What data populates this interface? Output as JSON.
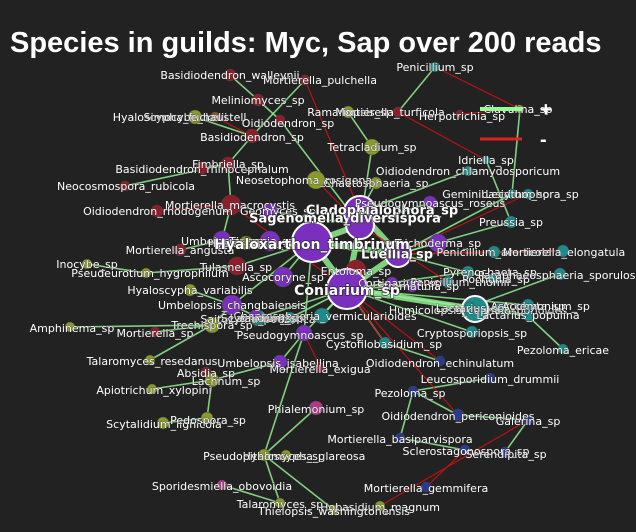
{
  "title": "Species in guilds: Myc, Sap over 200 reads",
  "legend": {
    "positive": {
      "label": "+",
      "color": "#99ff99"
    },
    "negative": {
      "label": "-",
      "color": "#dd2222"
    }
  },
  "colors": {
    "background": "#222222",
    "positive_edge": "#90ee90",
    "negative_edge": "#cc1111",
    "node_purple": "#7b2fbf",
    "node_teal": "#1f8a8a",
    "node_red": "#8e1f2a",
    "node_olive": "#8a9a2a",
    "node_navy": "#2a3a8e",
    "node_brown": "#8a5a2a",
    "node_pink": "#b03a8a"
  },
  "nodes": [
    {
      "id": "basidiodendron_walleynii",
      "label": "Basidiodendron_walleynii",
      "color": "node_red"
    },
    {
      "id": "mortierella_pulchella",
      "label": "Mortierella_pulchella",
      "color": "node_red"
    },
    {
      "id": "penicillium_sp",
      "label": "Penicillium_sp",
      "color": "node_teal"
    },
    {
      "id": "meliniomyces_sp",
      "label": "Meliniomyces_sp",
      "color": "node_red"
    },
    {
      "id": "hyaloscypha_fuckelii",
      "label": "Hyaloscypha_fuckelii",
      "color": "node_olive"
    },
    {
      "id": "simocybe_haustellaris",
      "label": "Simocybe_haustell",
      "color": "node_brown"
    },
    {
      "id": "oidiodendron_sp_top",
      "label": "Oidiodendron_sp",
      "color": "node_red"
    },
    {
      "id": "ramariopsis_sp",
      "label": "Ramariopsis_sp",
      "color": "node_olive"
    },
    {
      "id": "mortierella_turficola",
      "label": "Mortierella_turficola",
      "color": "node_red"
    },
    {
      "id": "herpotrichia_sp",
      "label": "Herpotrichia_sp",
      "color": "node_red"
    },
    {
      "id": "clavulina_sp",
      "label": "Clavulina_sp",
      "color": "node_olive"
    },
    {
      "id": "basidiodendron_sp",
      "label": "Basidiodendron_sp",
      "color": "node_red"
    },
    {
      "id": "tetracladium_sp",
      "label": "Tetracladium_sp",
      "color": "node_olive"
    },
    {
      "id": "basidiodendron_rhinocephalum",
      "label": "Basidiodendron_rhinocephalum",
      "color": "node_red"
    },
    {
      "id": "fimbriella_sp",
      "label": "Fimbriella_sp",
      "color": "node_red"
    },
    {
      "id": "idriella_sp",
      "label": "Idriella_sp",
      "color": "node_teal"
    },
    {
      "id": "oidiodendron_chlamydosporicum",
      "label": "Oidiodendron_chlamydosporicum",
      "color": "node_teal"
    },
    {
      "id": "neosetophoma_sp",
      "label": "Neosetophoma_rosigena",
      "color": "node_olive"
    },
    {
      "id": "chaetosphaeria_sp",
      "label": "Chaetosphaeria_sp",
      "color": "node_olive"
    },
    {
      "id": "neocosmospora_rubicola",
      "label": "Neocosmospora_rubicola",
      "color": "node_red"
    },
    {
      "id": "geminibasidium_sp",
      "label": "Geminibasidium_sp",
      "color": "node_teal"
    },
    {
      "id": "lecythophora_sp",
      "label": "Lecythophora_sp",
      "color": "node_teal"
    },
    {
      "id": "mortierella_macrocystis",
      "label": "Mortierella_macrocystis",
      "color": "node_red"
    },
    {
      "id": "geomyces_sp",
      "label": "Geomyces_sp",
      "color": "node_purple"
    },
    {
      "id": "cladophialophora_sp",
      "label": "Cladophialophora_sp",
      "color": "node_purple"
    },
    {
      "id": "pseudogymnoascus_roseus",
      "label": "Pseudogymnoascus_roseus",
      "color": "node_purple"
    },
    {
      "id": "oidiodendron_rhodogenum",
      "label": "Oidiodendron_rhodogenum",
      "color": "node_red"
    },
    {
      "id": "sagenomella_diversispora",
      "label": "Sagenomella_diversispora",
      "color": "node_purple"
    },
    {
      "id": "preussia_sp",
      "label": "Preussia_sp",
      "color": "node_teal"
    },
    {
      "id": "umbelopsis_sp",
      "label": "Umbelopsis_sp",
      "color": "node_purple"
    },
    {
      "id": "mortierella_angusta",
      "label": "Mortierella_angusta",
      "color": "node_red"
    },
    {
      "id": "tausonia_sp",
      "label": "Tausonia_sp",
      "color": "node_purple"
    },
    {
      "id": "hyaloscypha_sp",
      "label": "Hyaloscypha_sp",
      "color": "node_olive"
    },
    {
      "id": "trichoderma_sp",
      "label": "Trichoderma_sp",
      "color": "node_purple"
    },
    {
      "id": "taxomyces_sp",
      "label": "Penicillium_arenicola",
      "color": "node_teal"
    },
    {
      "id": "mortierella_elongatula",
      "label": "Mortierella_elongatula",
      "color": "node_teal"
    },
    {
      "id": "inocybe_sp",
      "label": "Inocybe_sp",
      "color": "node_olive"
    },
    {
      "id": "luellia_sp",
      "label": "Luellia_sp",
      "color": "node_purple"
    },
    {
      "id": "pseudeurotium_hygrophilum",
      "label": "Pseudeurotium_hygrophilum",
      "color": "node_olive"
    },
    {
      "id": "tulasnella_sp",
      "label": "Tulasnella_sp",
      "color": "node_red"
    },
    {
      "id": "entoloma_sp",
      "label": "Entoloma_sp",
      "color": "node_red"
    },
    {
      "id": "pezizomycetes_sp",
      "label": "Pyrenochaeta_sp",
      "color": "node_teal"
    },
    {
      "id": "penicillium_thomii",
      "label": "Penicillium_thomii",
      "color": "node_teal"
    },
    {
      "id": "ascocoryne_sp",
      "label": "Ascocoryne_sp",
      "color": "node_purple"
    },
    {
      "id": "pochonia_sp",
      "label": "Pochonia_sp",
      "color": "node_teal"
    },
    {
      "id": "hyaloscypha_variabilis",
      "label": "Hyaloscypha_variabilis",
      "color": "node_olive"
    },
    {
      "id": "cortinarium_sp",
      "label": "Cortinarium_sp",
      "color": "node_purple"
    },
    {
      "id": "stromatinia_sp",
      "label": "Stromatinia_sp",
      "color": "node_purple"
    },
    {
      "id": "humicolopsis_cephalosporioides",
      "label": "Humicolopsis_cephalosporioides",
      "color": "node_teal"
    },
    {
      "id": "paraphaeosphaeria_sporulosa",
      "label": "Paraphaeosphaeria_sporulosa",
      "color": "node_teal"
    },
    {
      "id": "umbelopsis_changbaiensis",
      "label": "Umbelopsis_changbaiensis",
      "color": "node_purple"
    },
    {
      "id": "saitozyma_podzolica",
      "label": "Saitozyma_podzolica",
      "color": "node_teal"
    },
    {
      "id": "chaetosphaeria_vermicularioides",
      "label": "Chaetosphaeria_vermicularioides",
      "color": "node_teal"
    },
    {
      "id": "ascochyta_sp",
      "label": "Ascochyta_sp",
      "color": "node_teal"
    },
    {
      "id": "acremonium_sp",
      "label": "Acremonium_sp",
      "color": "node_teal"
    },
    {
      "id": "lactarius_sp",
      "label": "Lactarius_sp",
      "color": "node_teal"
    },
    {
      "id": "lachnum_sp",
      "label": "Lachnum_sp",
      "color": "node_purple"
    },
    {
      "id": "lactarius_populina",
      "label": "Lactarius_populina",
      "color": "node_teal"
    },
    {
      "id": "amphinema_sp",
      "label": "Amphinema_sp",
      "color": "node_olive"
    },
    {
      "id": "mortierella_sp",
      "label": "Mortierella_sp",
      "color": "node_red"
    },
    {
      "id": "trechispora_sp",
      "label": "Trechispora_sp",
      "color": "node_olive"
    },
    {
      "id": "pseudogymnoascus_sp",
      "label": "Pseudogymnoascus_sp",
      "color": "node_purple"
    },
    {
      "id": "cryptosporiopsis_sp",
      "label": "Cryptosporiopsis_sp",
      "color": "node_teal"
    },
    {
      "id": "cystofilobasidium_sp",
      "label": "Cystofilobasidium_sp",
      "color": "node_teal"
    },
    {
      "id": "pezoloma_ericae",
      "label": "Pezoloma_ericae",
      "color": "node_teal"
    },
    {
      "id": "talaromyces_rosedanus",
      "label": "Talaromyces_resedanus",
      "color": "node_olive"
    },
    {
      "id": "umbelopsis_isabellina",
      "label": "Umbelopsis_isabellina",
      "color": "node_purple"
    },
    {
      "id": "oidiodendron_echinulatum",
      "label": "Oidiodendron_echinulatum",
      "color": "node_navy"
    },
    {
      "id": "absidia_sp",
      "label": "Absidia_sp",
      "color": "node_red"
    },
    {
      "id": "mortierella_exigua",
      "label": "Mortierella_exigua",
      "color": "node_red"
    },
    {
      "id": "lachnum_sp2",
      "label": "Lachnum_sp",
      "color": "node_olive"
    },
    {
      "id": "leucosporidium_drummii",
      "label": "Leucosporidium_drummii",
      "color": "node_navy"
    },
    {
      "id": "apiotrichum_xylopini",
      "label": "Apiotrichum_xylopini",
      "color": "node_olive"
    },
    {
      "id": "pezoloma_sp",
      "label": "Pezoloma_sp",
      "color": "node_navy"
    },
    {
      "id": "phialemonium_sp",
      "label": "Phialemonium_sp",
      "color": "node_pink"
    },
    {
      "id": "oidiodendron_periconioides",
      "label": "Oidiodendron_periconioides",
      "color": "node_navy"
    },
    {
      "id": "scytalidium_lignicola",
      "label": "Scytalidium_lignicola",
      "color": "node_olive"
    },
    {
      "id": "pedospora_sp",
      "label": "Pedospora_sp",
      "color": "node_olive"
    },
    {
      "id": "galerina_sp",
      "label": "Galerina_sp",
      "color": "node_navy"
    },
    {
      "id": "mortierella_basiparvispora",
      "label": "Mortierella_basiparvispora",
      "color": "node_navy"
    },
    {
      "id": "sclerostagonospora_sp",
      "label": "Sclerostagonospora_sp",
      "color": "node_navy"
    },
    {
      "id": "hyaloscypha_glareosa",
      "label": "Hyaloscypha_glareosa",
      "color": "node_olive"
    },
    {
      "id": "pseudopithomyces_sp",
      "label": "Pseudopithomyces_sp",
      "color": "node_olive"
    },
    {
      "id": "serendipita_sp",
      "label": "Serendipita_sp",
      "color": "node_navy"
    },
    {
      "id": "sporidesmiella_obovoidia",
      "label": "Sporidesmiella_obovoidia",
      "color": "node_pink"
    },
    {
      "id": "mortierella_gemmifera",
      "label": "Mortierella_gemmifera",
      "color": "node_navy"
    },
    {
      "id": "talaromyces_sp",
      "label": "Talaromyces_sp",
      "color": "node_olive"
    },
    {
      "id": "hobasidium_magnum",
      "label": "Hobasidium_magnum",
      "color": "node_olive"
    },
    {
      "id": "thielopsis_washingtonensis",
      "label": "Thielopsis_washingtonensis",
      "color": "node_olive"
    },
    {
      "id": "coniarium_sp",
      "label": "Coniarium_sp",
      "color": "node_purple"
    },
    {
      "id": "hyaloscypha_sp_big",
      "label": "Hyaloxarthon_timbrinum",
      "color": "node_purple"
    },
    {
      "id": "scytalidium_sp",
      "label": "Scytalidium_sp",
      "color": "node_teal"
    }
  ],
  "edges": [
    [
      "basidiodendron_walleynii",
      "meliniomyces_sp",
      "pos"
    ],
    [
      "mortierella_pulchella",
      "basidiodendron_sp",
      "pos"
    ],
    [
      "meliniomyces_sp",
      "oidiodendron_sp_top",
      "pos"
    ],
    [
      "hyaloscypha_fuckelii",
      "basidiodendron_sp",
      "pos"
    ],
    [
      "basidiodendron_sp",
      "fimbriella_sp",
      "pos"
    ],
    [
      "fimbriella_sp",
      "mortierella_macrocystis",
      "pos"
    ],
    [
      "mortierella_macrocystis",
      "umbelopsis_sp",
      "pos"
    ],
    [
      "umbelopsis_sp",
      "hyaloscypha_sp_big",
      "pos"
    ],
    [
      "hyaloscypha_sp_big",
      "sagenomella_diversispora",
      "pos"
    ],
    [
      "sagenomella_diversispora",
      "cladophialophora_sp",
      "pos"
    ],
    [
      "cladophialophora_sp",
      "luellia_sp",
      "pos"
    ],
    [
      "luellia_sp",
      "coniarium_sp",
      "pos"
    ],
    [
      "coniarium_sp",
      "hyaloscypha_sp_big",
      "pos"
    ],
    [
      "coniarium_sp",
      "sagenomella_diversispora",
      "pos"
    ],
    [
      "hyaloscypha_sp_big",
      "luellia_sp",
      "pos"
    ],
    [
      "tetracladium_sp",
      "sagenomella_diversispora",
      "pos"
    ],
    [
      "ramariopsis_sp",
      "tetracladium_sp",
      "pos"
    ],
    [
      "penicillium_sp",
      "clavulina_sp",
      "neg"
    ],
    [
      "penicillium_sp",
      "mortierella_turficola",
      "pos"
    ],
    [
      "mortierella_turficola",
      "idriella_sp",
      "neg"
    ],
    [
      "clavulina_sp",
      "geminibasidium_sp",
      "pos"
    ],
    [
      "idriella_sp",
      "preussia_sp",
      "pos"
    ],
    [
      "preussia_sp",
      "luellia_sp",
      "pos"
    ],
    [
      "mortierella_elongatula",
      "luellia_sp",
      "pos"
    ],
    [
      "paraphaeosphaeria_sporulosa",
      "lactarius_sp",
      "pos"
    ],
    [
      "lactarius_sp",
      "coniarium_sp",
      "pos"
    ],
    [
      "lactarius_populina",
      "coniarium_sp",
      "pos"
    ],
    [
      "pezoloma_ericae",
      "lactarius_populina",
      "pos"
    ],
    [
      "cryptosporiopsis_sp",
      "coniarium_sp",
      "pos"
    ],
    [
      "cystofilobasidium_sp",
      "coniarium_sp",
      "pos"
    ],
    [
      "oidiodendron_echinulatum",
      "cystofilobasidium_sp",
      "pos"
    ],
    [
      "leucosporidium_drummii",
      "pezoloma_sp",
      "pos"
    ],
    [
      "pezoloma_sp",
      "oidiodendron_periconioides",
      "pos"
    ],
    [
      "oidiodendron_periconioides",
      "galerina_sp",
      "pos"
    ],
    [
      "galerina_sp",
      "serendipita_sp",
      "pos"
    ],
    [
      "sclerostagonospora_sp",
      "mortierella_gemmifera",
      "neg"
    ],
    [
      "mortierella_basiparvispora",
      "sclerostagonospora_sp",
      "pos"
    ],
    [
      "phialemonium_sp",
      "pseudopithomyces_sp",
      "pos"
    ],
    [
      "pseudopithomyces_sp",
      "hyaloscypha_glareosa",
      "pos"
    ],
    [
      "pseudopithomyces_sp",
      "pseudogymnoascus_sp",
      "pos"
    ],
    [
      "pseudogymnoascus_sp",
      "coniarium_sp",
      "pos"
    ],
    [
      "umbelopsis_isabellina",
      "pseudogymnoascus_sp",
      "pos"
    ],
    [
      "absidia_sp",
      "lachnum_sp2",
      "pos"
    ],
    [
      "lachnum_sp2",
      "umbelopsis_isabellina",
      "pos"
    ],
    [
      "apiotrichum_xylopini",
      "lachnum_sp2",
      "pos"
    ],
    [
      "pedospora_sp",
      "lachnum_sp2",
      "pos"
    ],
    [
      "scytalidium_lignicola",
      "pedospora_sp",
      "pos"
    ],
    [
      "talaromyces_rosedanus",
      "trechispora_sp",
      "pos"
    ],
    [
      "mortierella_sp",
      "trechispora_sp",
      "pos"
    ],
    [
      "amphinema_sp",
      "trechispora_sp",
      "pos"
    ],
    [
      "trechispora_sp",
      "umbelopsis_changbaiensis",
      "pos"
    ],
    [
      "umbelopsis_changbaiensis",
      "hyaloscypha_sp_big",
      "pos"
    ],
    [
      "hyaloscypha_variabilis",
      "umbelopsis_changbaiensis",
      "pos"
    ],
    [
      "pseudeurotium_hygrophilum",
      "tulasnella_sp",
      "pos"
    ],
    [
      "inocybe_sp",
      "pseudeurotium_hygrophilum",
      "pos"
    ],
    [
      "tulasnella_sp",
      "hyaloscypha_sp_big",
      "pos"
    ],
    [
      "mortierella_angusta",
      "umbelopsis_sp",
      "pos"
    ],
    [
      "oidiodendron_rhodogenum",
      "mortierella_macrocystis",
      "neg"
    ],
    [
      "neocosmospora_rubicola",
      "fimbriella_sp",
      "pos"
    ],
    [
      "basidiodendron_rhinocephalum",
      "fimbriella_sp",
      "pos"
    ],
    [
      "neosetophoma_sp",
      "sagenomella_diversispora",
      "neg"
    ],
    [
      "chaetosphaeria_sp",
      "cladophialophora_sp",
      "pos"
    ],
    [
      "oidiodendron_chlamydosporicum",
      "cladophialophora_sp",
      "pos"
    ],
    [
      "geminibasidium_sp",
      "luellia_sp",
      "pos"
    ],
    [
      "lecythophora_sp",
      "luellia_sp",
      "neg"
    ],
    [
      "pseudogymnoascus_roseus",
      "sagenomella_diversispora",
      "pos"
    ],
    [
      "geomyces_sp",
      "sagenomella_diversispora",
      "pos"
    ],
    [
      "trichoderma_sp",
      "luellia_sp",
      "pos"
    ],
    [
      "taxomyces_sp",
      "luellia_sp",
      "neg"
    ],
    [
      "entoloma_sp",
      "coniarium_sp",
      "pos"
    ],
    [
      "pezizomycetes_sp",
      "coniarium_sp",
      "pos"
    ],
    [
      "penicillium_thomii",
      "coniarium_sp",
      "neg"
    ],
    [
      "ascocoryne_sp",
      "hyaloscypha_sp_big",
      "pos"
    ],
    [
      "pochonia_sp",
      "luellia_sp",
      "pos"
    ],
    [
      "cortinarium_sp",
      "coniarium_sp",
      "pos"
    ],
    [
      "stromatinia_sp",
      "coniarium_sp",
      "pos"
    ],
    [
      "humicolopsis_cephalosporioides",
      "coniarium_sp",
      "pos"
    ],
    [
      "saitozyma_podzolica",
      "coniarium_sp",
      "pos"
    ],
    [
      "chaetosphaeria_vermicularioides",
      "coniarium_sp",
      "pos"
    ],
    [
      "ascochyta_sp",
      "coniarium_sp",
      "pos"
    ],
    [
      "acremonium_sp",
      "lactarius_populina",
      "pos"
    ],
    [
      "lachnum_sp",
      "umbelopsis_changbaiensis",
      "pos"
    ],
    [
      "mortierella_exigua",
      "pseudogymnoascus_sp",
      "neg"
    ],
    [
      "oidiodendron_echinulatum",
      "coniarium_sp",
      "neg"
    ],
    [
      "sporidesmiella_obovoidia",
      "talaromyces_sp",
      "pos"
    ],
    [
      "talaromyces_sp",
      "pseudopithomyces_sp",
      "pos"
    ],
    [
      "hobasidium_magnum",
      "galerina_sp",
      "neg"
    ],
    [
      "thielopsis_washingtonensis",
      "pseudopithomyces_sp",
      "pos"
    ],
    [
      "herpotrichia_sp",
      "clavulina_sp",
      "neg"
    ],
    [
      "simocybe_haustellaris",
      "basidiodendron_sp",
      "neg"
    ],
    [
      "scytalidium_sp",
      "coniarium_sp",
      "pos"
    ],
    [
      "oidiodendron_sp_top",
      "sagenomella_diversispora",
      "pos"
    ],
    [
      "mortierella_macrocystis",
      "coniarium_sp",
      "neg"
    ],
    [
      "mortierella_pulchella",
      "cladophialophora_sp",
      "neg"
    ],
    [
      "luellia_sp",
      "mortierella_elongatula",
      "neg"
    ],
    [
      "sagenomella_diversispora",
      "penicillium_thomii",
      "neg"
    ],
    [
      "hyaloscypha_sp_big",
      "pseudogymnoascus_sp",
      "pos"
    ],
    [
      "coniarium_sp",
      "cystofilobasidium_sp",
      "neg"
    ],
    [
      "coniarium_sp",
      "oidiodendron_periconioides",
      "neg"
    ],
    [
      "pezoloma_sp",
      "mortierella_basiparvispora",
      "pos"
    ]
  ]
}
